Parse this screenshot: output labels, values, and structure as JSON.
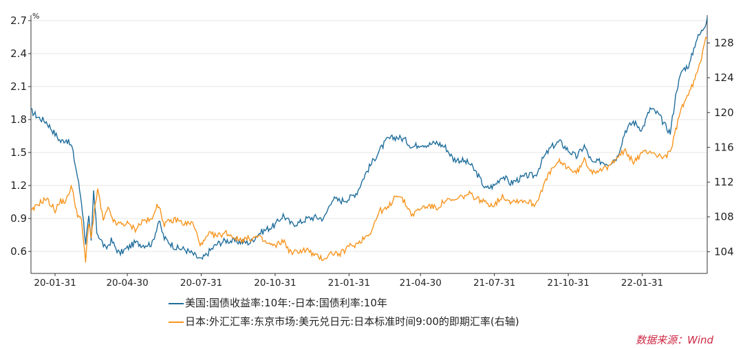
{
  "chart_data": {
    "type": "line",
    "left_axis": {
      "unit": "%",
      "ticks": [
        "2.7",
        "2.4",
        "2.1",
        "1.8",
        "1.5",
        "1.2",
        "0.9",
        "0.6"
      ],
      "min": 0.4,
      "max": 2.75
    },
    "right_axis": {
      "ticks": [
        "128",
        "124",
        "120",
        "116",
        "112",
        "108",
        "104"
      ],
      "min": 101.5,
      "max": 131.2
    },
    "x_ticks": [
      "20-01-31",
      "20-04-30",
      "20-07-31",
      "20-10-31",
      "21-01-31",
      "21-04-30",
      "21-07-31",
      "21-10-31",
      "22-01-31"
    ],
    "series": [
      {
        "name": "美国:国债收益率:10年:-日本:国债利率:10年",
        "axis": "left",
        "color": "#1f6d9b",
        "points": [
          [
            "2020-01-01",
            1.88
          ],
          [
            "2020-01-10",
            1.82
          ],
          [
            "2020-01-20",
            1.78
          ],
          [
            "2020-01-31",
            1.67
          ],
          [
            "2020-02-07",
            1.6
          ],
          [
            "2020-02-14",
            1.62
          ],
          [
            "2020-02-21",
            1.55
          ],
          [
            "2020-02-28",
            1.28
          ],
          [
            "2020-03-04",
            1.05
          ],
          [
            "2020-03-09",
            0.68
          ],
          [
            "2020-03-13",
            0.9
          ],
          [
            "2020-03-16",
            0.68
          ],
          [
            "2020-03-19",
            1.15
          ],
          [
            "2020-03-23",
            0.78
          ],
          [
            "2020-03-27",
            0.72
          ],
          [
            "2020-04-03",
            0.62
          ],
          [
            "2020-04-10",
            0.7
          ],
          [
            "2020-04-20",
            0.58
          ],
          [
            "2020-04-30",
            0.63
          ],
          [
            "2020-05-10",
            0.68
          ],
          [
            "2020-05-20",
            0.66
          ],
          [
            "2020-05-31",
            0.67
          ],
          [
            "2020-06-08",
            0.88
          ],
          [
            "2020-06-15",
            0.72
          ],
          [
            "2020-06-30",
            0.63
          ],
          [
            "2020-07-10",
            0.62
          ],
          [
            "2020-07-20",
            0.58
          ],
          [
            "2020-07-31",
            0.52
          ],
          [
            "2020-08-10",
            0.6
          ],
          [
            "2020-08-20",
            0.67
          ],
          [
            "2020-08-31",
            0.7
          ],
          [
            "2020-09-15",
            0.69
          ],
          [
            "2020-09-30",
            0.68
          ],
          [
            "2020-10-10",
            0.76
          ],
          [
            "2020-10-20",
            0.8
          ],
          [
            "2020-10-31",
            0.84
          ],
          [
            "2020-11-10",
            0.93
          ],
          [
            "2020-11-20",
            0.85
          ],
          [
            "2020-11-30",
            0.86
          ],
          [
            "2020-12-10",
            0.9
          ],
          [
            "2020-12-20",
            0.91
          ],
          [
            "2020-12-31",
            0.9
          ],
          [
            "2021-01-10",
            1.08
          ],
          [
            "2021-01-20",
            1.06
          ],
          [
            "2021-01-31",
            1.08
          ],
          [
            "2021-02-10",
            1.14
          ],
          [
            "2021-02-20",
            1.3
          ],
          [
            "2021-02-28",
            1.4
          ],
          [
            "2021-03-10",
            1.52
          ],
          [
            "2021-03-20",
            1.62
          ],
          [
            "2021-03-31",
            1.64
          ],
          [
            "2021-04-10",
            1.62
          ],
          [
            "2021-04-20",
            1.55
          ],
          [
            "2021-04-30",
            1.58
          ],
          [
            "2021-05-10",
            1.57
          ],
          [
            "2021-05-20",
            1.59
          ],
          [
            "2021-05-31",
            1.55
          ],
          [
            "2021-06-10",
            1.44
          ],
          [
            "2021-06-20",
            1.43
          ],
          [
            "2021-06-30",
            1.4
          ],
          [
            "2021-07-10",
            1.3
          ],
          [
            "2021-07-20",
            1.17
          ],
          [
            "2021-07-31",
            1.2
          ],
          [
            "2021-08-10",
            1.29
          ],
          [
            "2021-08-20",
            1.22
          ],
          [
            "2021-08-31",
            1.26
          ],
          [
            "2021-09-10",
            1.29
          ],
          [
            "2021-09-20",
            1.29
          ],
          [
            "2021-09-30",
            1.45
          ],
          [
            "2021-10-10",
            1.55
          ],
          [
            "2021-10-20",
            1.6
          ],
          [
            "2021-10-31",
            1.52
          ],
          [
            "2021-11-10",
            1.46
          ],
          [
            "2021-11-20",
            1.56
          ],
          [
            "2021-11-30",
            1.4
          ],
          [
            "2021-12-10",
            1.42
          ],
          [
            "2021-12-20",
            1.4
          ],
          [
            "2021-12-31",
            1.46
          ],
          [
            "2022-01-10",
            1.7
          ],
          [
            "2022-01-20",
            1.78
          ],
          [
            "2022-01-31",
            1.71
          ],
          [
            "2022-02-10",
            1.9
          ],
          [
            "2022-02-20",
            1.85
          ],
          [
            "2022-02-28",
            1.75
          ],
          [
            "2022-03-07",
            1.68
          ],
          [
            "2022-03-15",
            2.08
          ],
          [
            "2022-03-22",
            2.25
          ],
          [
            "2022-03-31",
            2.3
          ],
          [
            "2022-04-08",
            2.52
          ],
          [
            "2022-04-15",
            2.6
          ],
          [
            "2022-04-20",
            2.68
          ],
          [
            "2022-04-22",
            2.73
          ]
        ]
      },
      {
        "name": "日本:外汇汇率:东京市场:美元兑日元:日本标准时间9:00的即期汇率(右轴)",
        "axis": "right",
        "color": "#f7941d",
        "points": [
          [
            "2020-01-01",
            108.5
          ],
          [
            "2020-01-10",
            109.5
          ],
          [
            "2020-01-20",
            110.1
          ],
          [
            "2020-01-31",
            108.8
          ],
          [
            "2020-02-07",
            109.8
          ],
          [
            "2020-02-14",
            109.8
          ],
          [
            "2020-02-20",
            111.6
          ],
          [
            "2020-02-28",
            108.3
          ],
          [
            "2020-03-04",
            107.5
          ],
          [
            "2020-03-09",
            102.8
          ],
          [
            "2020-03-13",
            107.5
          ],
          [
            "2020-03-16",
            105.8
          ],
          [
            "2020-03-24",
            111.2
          ],
          [
            "2020-03-31",
            107.6
          ],
          [
            "2020-04-06",
            108.9
          ],
          [
            "2020-04-15",
            107.2
          ],
          [
            "2020-04-30",
            107.2
          ],
          [
            "2020-05-10",
            106.6
          ],
          [
            "2020-05-20",
            107.6
          ],
          [
            "2020-05-31",
            107.6
          ],
          [
            "2020-06-06",
            109.7
          ],
          [
            "2020-06-15",
            107.2
          ],
          [
            "2020-06-30",
            107.7
          ],
          [
            "2020-07-10",
            107.2
          ],
          [
            "2020-07-20",
            107.3
          ],
          [
            "2020-07-31",
            104.7
          ],
          [
            "2020-08-10",
            106.0
          ],
          [
            "2020-08-20",
            105.8
          ],
          [
            "2020-08-31",
            106.2
          ],
          [
            "2020-09-15",
            105.4
          ],
          [
            "2020-09-30",
            105.5
          ],
          [
            "2020-10-10",
            105.7
          ],
          [
            "2020-10-20",
            105.0
          ],
          [
            "2020-10-31",
            104.6
          ],
          [
            "2020-11-10",
            105.3
          ],
          [
            "2020-11-20",
            103.8
          ],
          [
            "2020-11-30",
            104.1
          ],
          [
            "2020-12-10",
            104.2
          ],
          [
            "2020-12-20",
            103.5
          ],
          [
            "2020-12-31",
            103.2
          ],
          [
            "2021-01-10",
            103.9
          ],
          [
            "2021-01-20",
            103.7
          ],
          [
            "2021-01-31",
            104.6
          ],
          [
            "2021-02-10",
            104.9
          ],
          [
            "2021-02-20",
            105.7
          ],
          [
            "2021-02-28",
            106.4
          ],
          [
            "2021-03-10",
            108.7
          ],
          [
            "2021-03-20",
            108.9
          ],
          [
            "2021-03-31",
            110.7
          ],
          [
            "2021-04-10",
            109.7
          ],
          [
            "2021-04-20",
            108.2
          ],
          [
            "2021-04-30",
            109.0
          ],
          [
            "2021-05-10",
            109.3
          ],
          [
            "2021-05-20",
            109.0
          ],
          [
            "2021-05-31",
            109.9
          ],
          [
            "2021-06-10",
            109.8
          ],
          [
            "2021-06-20",
            110.3
          ],
          [
            "2021-06-30",
            110.6
          ],
          [
            "2021-07-10",
            110.1
          ],
          [
            "2021-07-20",
            109.6
          ],
          [
            "2021-07-31",
            109.4
          ],
          [
            "2021-08-10",
            110.4
          ],
          [
            "2021-08-20",
            109.8
          ],
          [
            "2021-08-31",
            109.9
          ],
          [
            "2021-09-10",
            109.8
          ],
          [
            "2021-09-20",
            109.4
          ],
          [
            "2021-09-30",
            111.6
          ],
          [
            "2021-10-10",
            113.4
          ],
          [
            "2021-10-20",
            114.3
          ],
          [
            "2021-10-31",
            113.7
          ],
          [
            "2021-11-10",
            113.0
          ],
          [
            "2021-11-20",
            114.5
          ],
          [
            "2021-11-30",
            113.2
          ],
          [
            "2021-12-10",
            113.5
          ],
          [
            "2021-12-20",
            113.6
          ],
          [
            "2021-12-31",
            115.1
          ],
          [
            "2022-01-10",
            115.5
          ],
          [
            "2022-01-20",
            114.3
          ],
          [
            "2022-01-31",
            115.3
          ],
          [
            "2022-02-10",
            115.6
          ],
          [
            "2022-02-20",
            115.0
          ],
          [
            "2022-02-28",
            114.9
          ],
          [
            "2022-03-07",
            115.4
          ],
          [
            "2022-03-15",
            118.4
          ],
          [
            "2022-03-22",
            120.8
          ],
          [
            "2022-03-31",
            122.3
          ],
          [
            "2022-04-08",
            124.2
          ],
          [
            "2022-04-15",
            126.5
          ],
          [
            "2022-04-20",
            128.9
          ],
          [
            "2022-04-22",
            128.5
          ]
        ]
      }
    ]
  },
  "source_label": "数据来源：Wind"
}
